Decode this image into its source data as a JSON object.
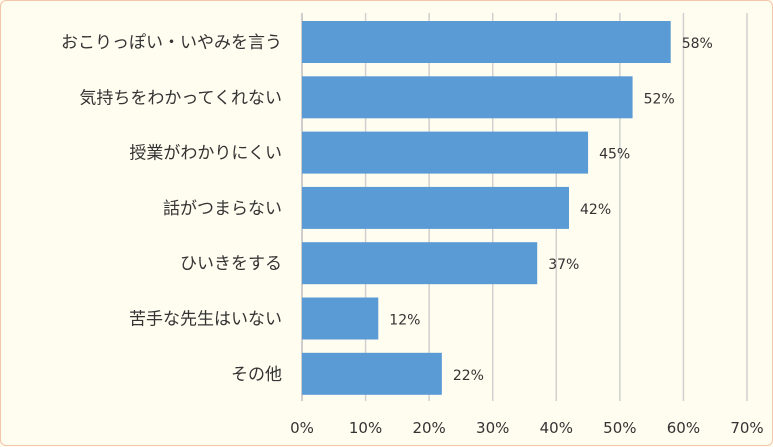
{
  "chart_data": {
    "type": "bar",
    "orientation": "horizontal",
    "categories": [
      "おこりっぽい・いやみを言う",
      "気持ちをわかってくれない",
      "授業がわかりにくい",
      "話がつまらない",
      "ひいきをする",
      "苦手な先生はいない",
      "その他"
    ],
    "values": [
      58,
      52,
      45,
      42,
      37,
      12,
      22
    ],
    "value_labels": [
      "58%",
      "52%",
      "45%",
      "42%",
      "37%",
      "12%",
      "22%"
    ],
    "x_ticks": [
      "0%",
      "10%",
      "20%",
      "30%",
      "40%",
      "50%",
      "60%",
      "70%"
    ],
    "xlim": [
      0,
      70
    ],
    "grid": true,
    "bar_color": "#5b9bd5"
  }
}
